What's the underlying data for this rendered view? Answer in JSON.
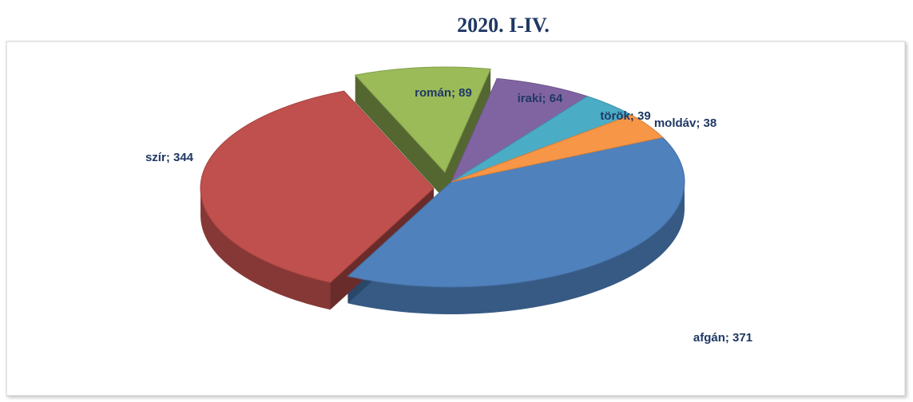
{
  "chart_data": {
    "type": "pie",
    "title": "2020. I-IV.",
    "categories": [
      "afgán",
      "szír",
      "román",
      "iraki",
      "török",
      "moldáv"
    ],
    "values": [
      371,
      344,
      89,
      64,
      39,
      38
    ],
    "value_labels": [
      "afgán; 371",
      "szír; 344",
      "román; 89",
      "iraki; 64",
      "török; 39",
      "moldáv; 38"
    ],
    "colors": [
      "#4f81bd",
      "#c0504d",
      "#9bbb59",
      "#8064a2",
      "#4bacc6",
      "#f79646"
    ]
  }
}
